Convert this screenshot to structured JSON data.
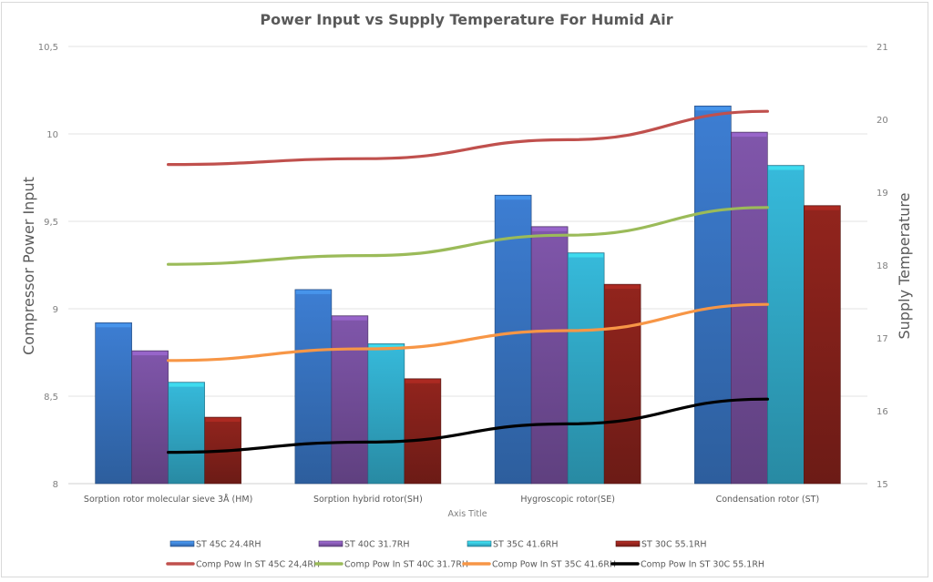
{
  "chart_data": {
    "type": "bar",
    "title": "Power Input vs Supply Temperature For Humid Air",
    "xlabel": "Axis Title",
    "ylabel": "Compressor Power Input",
    "y2label": "Supply Temperature",
    "categories": [
      "Sorption rotor molecular sieve 3Å (HM)",
      "Sorption hybrid rotor(SH)",
      "Hygroscopic rotor(SE)",
      "Condensation rotor (ST)"
    ],
    "ylim": [
      8,
      10.5
    ],
    "y_ticks": [
      "8",
      "8,5",
      "9",
      "9,5",
      "10",
      "10,5"
    ],
    "y2lim": [
      15,
      21
    ],
    "y2_ticks": [
      "15",
      "16",
      "17",
      "18",
      "19",
      "20",
      "21"
    ],
    "grid": true,
    "legend_position": "bottom",
    "series": [
      {
        "name": "ST 45C 24.4RH",
        "kind": "bar",
        "axis": "left",
        "color": "#3a78c9",
        "values": [
          8.92,
          9.11,
          9.65,
          10.16
        ]
      },
      {
        "name": "ST 40C 31.7RH",
        "kind": "bar",
        "axis": "left",
        "color": "#7a52a3",
        "values": [
          8.76,
          8.96,
          9.47,
          10.01
        ]
      },
      {
        "name": "ST 35C 41.6RH",
        "kind": "bar",
        "axis": "left",
        "color": "#33b1d1",
        "values": [
          8.58,
          8.8,
          9.32,
          9.82
        ]
      },
      {
        "name": "ST 30C 55.1RH",
        "kind": "bar",
        "axis": "left",
        "color": "#8b221c",
        "values": [
          8.38,
          8.6,
          9.14,
          9.59
        ]
      },
      {
        "name": "Comp Pow In ST 45C 24,4RH",
        "kind": "line",
        "axis": "right",
        "color": "#c0504d",
        "values": [
          19.38,
          19.46,
          19.72,
          20.11
        ]
      },
      {
        "name": "Comp Pow In ST 40C 31.7RH",
        "kind": "line",
        "axis": "right",
        "color": "#9bbb59",
        "values": [
          18.01,
          18.13,
          18.41,
          18.79
        ]
      },
      {
        "name": "Comp Pow In ST 35C 41.6RH",
        "kind": "line",
        "axis": "right",
        "color": "#f79646",
        "values": [
          16.69,
          16.85,
          17.1,
          17.46
        ]
      },
      {
        "name": "Comp Pow In ST 30C 55.1RH",
        "kind": "line",
        "axis": "right",
        "color": "#000000",
        "values": [
          15.43,
          15.57,
          15.82,
          16.16
        ]
      }
    ]
  }
}
